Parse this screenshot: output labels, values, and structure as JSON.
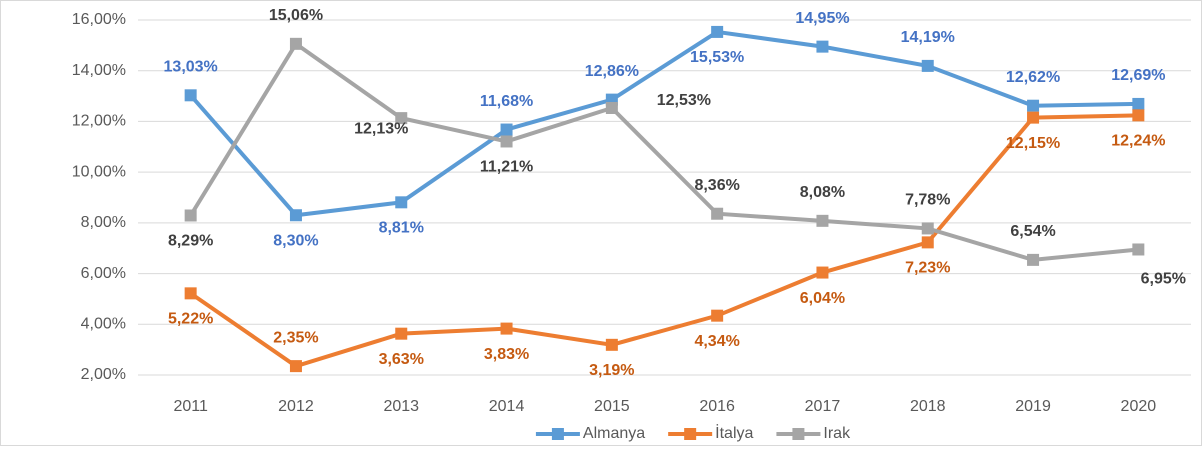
{
  "chart_data": {
    "type": "line",
    "categories": [
      "2011",
      "2012",
      "2013",
      "2014",
      "2015",
      "2016",
      "2017",
      "2018",
      "2019",
      "2020"
    ],
    "series": [
      {
        "name": "Almanya",
        "color": "#5b9bd5",
        "label_color": "#4472c4",
        "values": [
          13.03,
          8.3,
          8.81,
          11.68,
          12.86,
          15.53,
          14.95,
          14.19,
          12.62,
          12.69
        ],
        "value_labels": [
          "13,03%",
          "8,30%",
          "8,81%",
          "11,68%",
          "12,86%",
          "15,53%",
          "14,95%",
          "14,19%",
          "12,62%",
          "12,69%"
        ]
      },
      {
        "name": "İtalya",
        "color": "#ed7d31",
        "label_color": "#c55a11",
        "values": [
          5.22,
          2.35,
          3.63,
          3.83,
          3.19,
          4.34,
          6.04,
          7.23,
          12.15,
          12.24
        ],
        "value_labels": [
          "5,22%",
          "2,35%",
          "3,63%",
          "3,83%",
          "3,19%",
          "4,34%",
          "6,04%",
          "7,23%",
          "12,15%",
          "12,24%"
        ]
      },
      {
        "name": "Irak",
        "color": "#a5a5a5",
        "label_color": "#404040",
        "values": [
          8.29,
          15.06,
          12.13,
          11.21,
          12.53,
          8.36,
          8.08,
          7.78,
          6.54,
          6.95
        ],
        "value_labels": [
          "8,29%",
          "15,06%",
          "12,13%",
          "11,21%",
          "12,53%",
          "8,36%",
          "8,08%",
          "7,78%",
          "6,54%",
          "6,95%"
        ]
      }
    ],
    "ylim": [
      2,
      16
    ],
    "yticks": [
      {
        "value": 2,
        "label": "2,00%"
      },
      {
        "value": 4,
        "label": "4,00%"
      },
      {
        "value": 6,
        "label": "6,00%"
      },
      {
        "value": 8,
        "label": "8,00%"
      },
      {
        "value": 10,
        "label": "10,00%"
      },
      {
        "value": 12,
        "label": "12,00%"
      },
      {
        "value": 14,
        "label": "14,00%"
      },
      {
        "value": 16,
        "label": "16,00%"
      }
    ],
    "grid": true,
    "legend": "bottom"
  }
}
